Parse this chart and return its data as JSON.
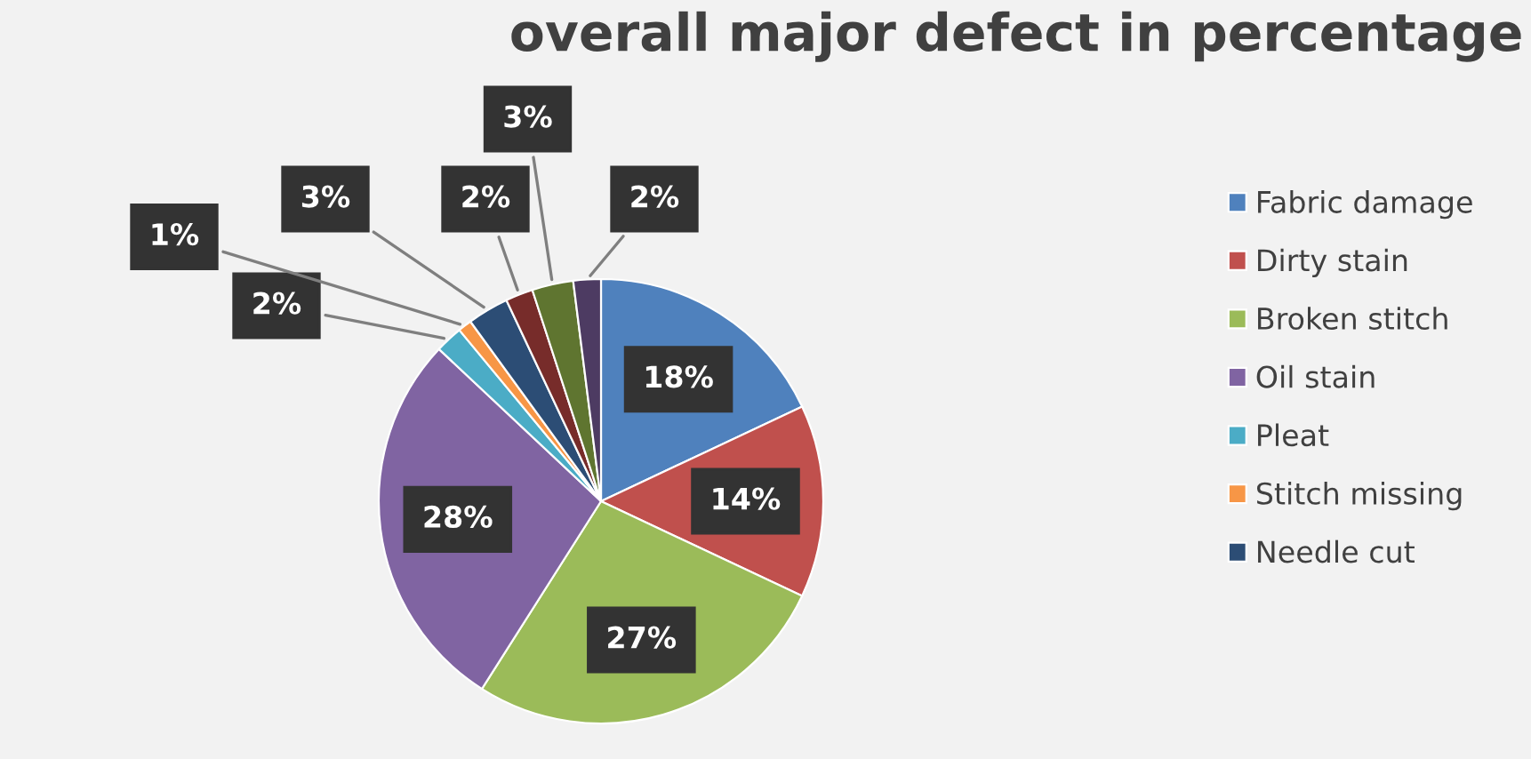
{
  "chart_data": {
    "type": "pie",
    "title": "overall major defect in percentage",
    "categories": [
      "Fabric damage",
      "Dirty stain",
      "Broken stitch",
      "Oil stain",
      "Pleat",
      "Stitch missing",
      "Needle cut",
      null,
      null,
      null
    ],
    "values": [
      18,
      14,
      27,
      28,
      2,
      1,
      3,
      2,
      3,
      2
    ],
    "colors": [
      "#4f81bd",
      "#c0504d",
      "#9bbb59",
      "#8064a2",
      "#4bacc6",
      "#f79646",
      "#2c4d75",
      "#772c2a",
      "#5f7530",
      "#4d3b62"
    ],
    "value_labels": [
      "18%",
      "14%",
      "27%",
      "28%",
      "2%",
      "1%",
      "3%",
      "2%",
      "3%",
      "2%"
    ],
    "legend": "right"
  }
}
